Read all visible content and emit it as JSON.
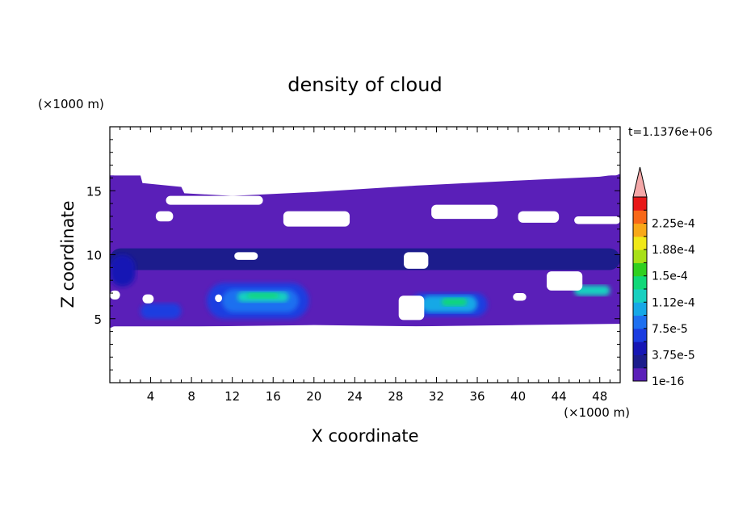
{
  "chart_data": {
    "type": "heatmap",
    "title": "density of cloud",
    "xlabel": "X coordinate",
    "ylabel": "Z coordinate",
    "x_unit": "(×1000 m)",
    "y_unit": "(×1000 m)",
    "time_label": "t=1.1376e+06",
    "xlim": [
      0,
      50
    ],
    "ylim": [
      0,
      20
    ],
    "x_ticks": [
      "4",
      "8",
      "12",
      "16",
      "20",
      "24",
      "28",
      "32",
      "36",
      "40",
      "44",
      "48"
    ],
    "y_ticks": [
      "5",
      "10",
      "15"
    ],
    "colorbar": {
      "labels": [
        "1e-16",
        "3.75e-5",
        "7.5e-5",
        "1.12e-4",
        "1.5e-4",
        "1.88e-4",
        "2.25e-4"
      ],
      "levels": [
        1e-16,
        1.875e-05,
        3.75e-05,
        5.625e-05,
        7.5e-05,
        9.375e-05,
        0.0001125,
        0.00013125,
        0.00015,
        0.00016875,
        0.0001875,
        0.00020625,
        0.000225,
        0.00024375
      ],
      "colors": [
        "#5a1fb8",
        "#1c1c8c",
        "#1616b4",
        "#1a3ce0",
        "#1e70f0",
        "#16a8e6",
        "#18d0c0",
        "#10d878",
        "#30d020",
        "#a8e018",
        "#f0e818",
        "#f8a818",
        "#f86818",
        "#e81818"
      ],
      "overflow_color": "#f4a8a8"
    },
    "cloud_regions": [
      {
        "x0": 0,
        "x1": 50,
        "z0": 4.5,
        "z1": 16.2,
        "level": 0
      },
      {
        "x0": 0,
        "x1": 50,
        "z0": 8.8,
        "z1": 10.5,
        "level": 1
      },
      {
        "x0": 0,
        "x1": 2.5,
        "z0": 7.5,
        "z1": 10,
        "level": 2
      },
      {
        "x0": 3,
        "x1": 7,
        "z0": 5,
        "z1": 6.2,
        "level": 3
      },
      {
        "x0": 9.5,
        "x1": 19.5,
        "z0": 5,
        "z1": 7.8,
        "level": 3
      },
      {
        "x0": 11,
        "x1": 18.5,
        "z0": 5.5,
        "z1": 7.3,
        "level": 4
      },
      {
        "x0": 12.5,
        "x1": 17.5,
        "z0": 6.3,
        "z1": 7.1,
        "level": 6
      },
      {
        "x0": 13.5,
        "x1": 16.5,
        "z0": 6.6,
        "z1": 7.0,
        "level": 7
      },
      {
        "x0": 29.5,
        "x1": 37,
        "z0": 5.2,
        "z1": 7.0,
        "level": 3
      },
      {
        "x0": 30.5,
        "x1": 36,
        "z0": 5.5,
        "z1": 6.8,
        "level": 5
      },
      {
        "x0": 32.5,
        "x1": 35,
        "z0": 6.0,
        "z1": 6.6,
        "level": 7
      },
      {
        "x0": 45.5,
        "x1": 49,
        "z0": 6.8,
        "z1": 7.6,
        "level": 6
      }
    ]
  }
}
